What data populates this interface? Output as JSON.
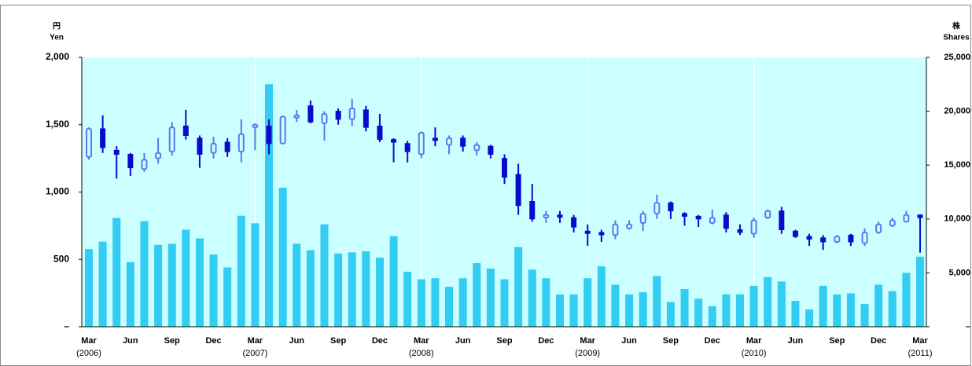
{
  "chart_data": {
    "type": "candlestick",
    "y_label": [
      "円",
      "Yen"
    ],
    "y2_label": [
      "株",
      "Shares"
    ],
    "categories": [
      "Mar",
      null,
      null,
      "Jun",
      null,
      null,
      "Sep",
      null,
      null,
      "Dec",
      null,
      null,
      "Mar",
      null,
      null,
      "Jun",
      null,
      null,
      "Sep",
      null,
      null,
      "Dec",
      null,
      null,
      "Mar",
      null,
      null,
      "Jun",
      null,
      null,
      "Sep",
      null,
      null,
      "Dec",
      null,
      null,
      "Mar",
      null,
      null,
      "Jun",
      null,
      null,
      "Sep",
      null,
      null,
      "Dec",
      null,
      null,
      "Mar",
      null,
      null,
      "Jun",
      null,
      null,
      "Sep",
      null,
      null,
      "Dec",
      null,
      null,
      "Mar"
    ],
    "year_labels": [
      "(2006)",
      null,
      null,
      null,
      null,
      null,
      null,
      null,
      null,
      null,
      null,
      null,
      "(2007)",
      null,
      null,
      null,
      null,
      null,
      null,
      null,
      null,
      null,
      null,
      null,
      "(2008)",
      null,
      null,
      null,
      null,
      null,
      null,
      null,
      null,
      null,
      null,
      null,
      "(2009)",
      null,
      null,
      null,
      null,
      null,
      null,
      null,
      null,
      null,
      null,
      null,
      "(2010)",
      null,
      null,
      null,
      null,
      null,
      null,
      null,
      null,
      null,
      null,
      null,
      "(2011)"
    ],
    "open": [
      1260,
      1470,
      1310,
      1280,
      1170,
      1250,
      1300,
      1490,
      1400,
      1290,
      1370,
      1300,
      1480,
      1490,
      1360,
      1560,
      1640,
      1510,
      1600,
      1540,
      1610,
      1490,
      1390,
      1360,
      1280,
      1400,
      1350,
      1400,
      1310,
      1340,
      1250,
      1130,
      930,
      810,
      830,
      810,
      710,
      700,
      680,
      730,
      770,
      840,
      920,
      840,
      820,
      770,
      830,
      720,
      690,
      810,
      860,
      710,
      670,
      660,
      630,
      680,
      620,
      700,
      750,
      780,
      830
    ],
    "high": [
      1480,
      1570,
      1340,
      1290,
      1290,
      1400,
      1520,
      1610,
      1420,
      1410,
      1400,
      1540,
      1510,
      1540,
      1560,
      1610,
      1680,
      1600,
      1620,
      1690,
      1640,
      1580,
      1400,
      1380,
      1450,
      1480,
      1420,
      1420,
      1370,
      1350,
      1280,
      1210,
      1060,
      860,
      860,
      830,
      760,
      720,
      790,
      790,
      860,
      980,
      930,
      850,
      830,
      870,
      850,
      760,
      810,
      870,
      890,
      720,
      690,
      680,
      680,
      690,
      730,
      780,
      810,
      860,
      830
    ],
    "low": [
      1240,
      1290,
      1100,
      1120,
      1150,
      1210,
      1270,
      1390,
      1180,
      1250,
      1260,
      1220,
      1310,
      1280,
      1360,
      1520,
      1510,
      1380,
      1500,
      1490,
      1450,
      1370,
      1220,
      1220,
      1250,
      1340,
      1280,
      1300,
      1270,
      1250,
      1060,
      830,
      780,
      770,
      770,
      700,
      600,
      630,
      650,
      720,
      710,
      800,
      800,
      750,
      740,
      760,
      700,
      680,
      660,
      800,
      690,
      660,
      600,
      570,
      620,
      600,
      600,
      690,
      740,
      780,
      550
    ],
    "close": [
      1470,
      1330,
      1280,
      1180,
      1240,
      1290,
      1480,
      1420,
      1280,
      1360,
      1300,
      1430,
      1500,
      1360,
      1560,
      1570,
      1520,
      1580,
      1540,
      1620,
      1480,
      1390,
      1370,
      1300,
      1440,
      1390,
      1400,
      1340,
      1350,
      1280,
      1110,
      900,
      800,
      830,
      820,
      740,
      700,
      690,
      760,
      760,
      840,
      920,
      860,
      820,
      800,
      810,
      730,
      700,
      790,
      860,
      720,
      670,
      650,
      630,
      670,
      630,
      700,
      760,
      790,
      830,
      810
    ],
    "up_color": "#5a78f0",
    "down_color": "#0a0acc",
    "volume": {
      "color": "#33ccf2",
      "axis": "y2",
      "values": [
        7200,
        7900,
        10100,
        6000,
        9800,
        7600,
        7700,
        9000,
        8200,
        6700,
        5500,
        10300,
        9600,
        22500,
        12900,
        7700,
        7100,
        9500,
        6800,
        6900,
        7000,
        6400,
        8400,
        5100,
        4400,
        4500,
        3700,
        4500,
        5900,
        5400,
        4400,
        7400,
        5300,
        4500,
        3000,
        3000,
        4500,
        5600,
        3900,
        3000,
        3200,
        4700,
        2300,
        3500,
        2600,
        1900,
        3000,
        3000,
        3800,
        4600,
        4200,
        2400,
        1600,
        3800,
        3000,
        3100,
        2100,
        3900,
        3300,
        5000,
        6500
      ]
    },
    "ylim": [
      0,
      2000
    ],
    "yticks": [
      {
        "value": 0,
        "label": "–"
      },
      500,
      {
        "value": 1000,
        "label": "1,000"
      },
      {
        "value": 1500,
        "label": "1,500"
      },
      {
        "value": 2000,
        "label": "2,000"
      }
    ],
    "y2lim": [
      0,
      25000
    ],
    "y2ticks": [
      {
        "value": 0,
        "label": "–"
      },
      {
        "value": 5000,
        "label": "5,000"
      },
      {
        "value": 10000,
        "label": "10,000"
      },
      {
        "value": 15000,
        "label": "15,000"
      },
      {
        "value": 20000,
        "label": "20,000"
      },
      {
        "value": 25000,
        "label": "25,000"
      }
    ],
    "background": "#ccffff"
  }
}
